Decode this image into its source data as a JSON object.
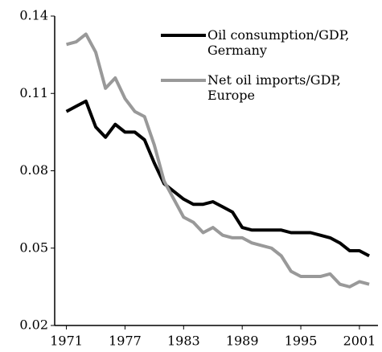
{
  "chart_data": {
    "type": "line",
    "x": [
      1971,
      1972,
      1973,
      1974,
      1975,
      1976,
      1977,
      1978,
      1979,
      1980,
      1981,
      1982,
      1983,
      1984,
      1985,
      1986,
      1987,
      1988,
      1989,
      1990,
      1991,
      1992,
      1993,
      1994,
      1995,
      1996,
      1997,
      1998,
      1999,
      2000,
      2001,
      2002
    ],
    "series": [
      {
        "name": "Oil consumption/GDP, Germany",
        "color": "#000000",
        "values": [
          0.103,
          0.105,
          0.107,
          0.097,
          0.093,
          0.098,
          0.095,
          0.095,
          0.092,
          0.083,
          0.075,
          0.072,
          0.069,
          0.067,
          0.067,
          0.068,
          0.066,
          0.064,
          0.058,
          0.057,
          0.057,
          0.057,
          0.057,
          0.056,
          0.056,
          0.056,
          0.055,
          0.054,
          0.052,
          0.049,
          0.049,
          0.047
        ]
      },
      {
        "name": "Net oil imports/GDP, Europe",
        "color": "#999999",
        "values": [
          0.129,
          0.13,
          0.133,
          0.126,
          0.112,
          0.116,
          0.108,
          0.103,
          0.101,
          0.09,
          0.076,
          0.069,
          0.062,
          0.06,
          0.056,
          0.058,
          0.055,
          0.054,
          0.054,
          0.052,
          0.051,
          0.05,
          0.047,
          0.041,
          0.039,
          0.039,
          0.039,
          0.04,
          0.036,
          0.035,
          0.037,
          0.036
        ]
      }
    ],
    "xlim": [
      1969.8,
      2002.9
    ],
    "xticks": [
      1971,
      1977,
      1983,
      1989,
      1995,
      2001
    ],
    "ylim": [
      0.02,
      0.14
    ],
    "yticks": [
      0.02,
      0.05,
      0.08,
      0.11,
      0.14
    ]
  }
}
